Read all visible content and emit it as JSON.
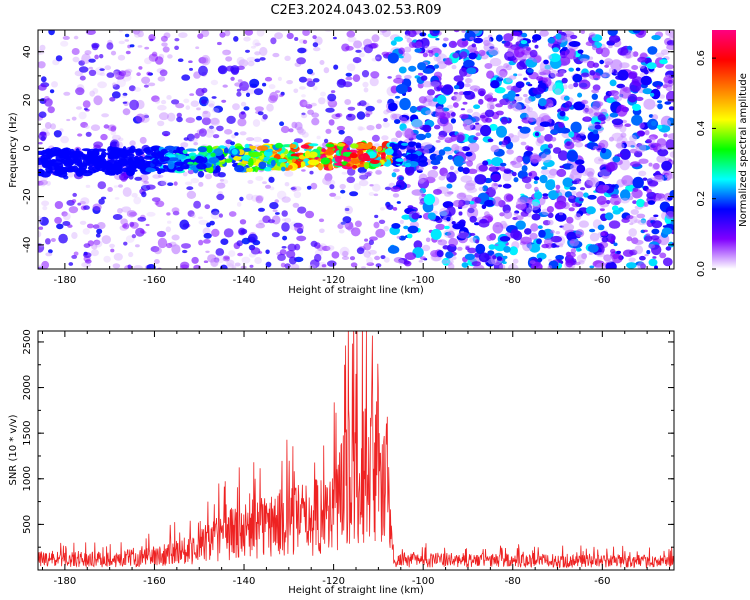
{
  "title": "C2E3.2024.043.02.53.R09",
  "chart_data": [
    {
      "type": "heatmap",
      "xlabel": "Height of straight line (km)",
      "ylabel": "Frequency (Hz)",
      "xlim": [
        -186,
        -44
      ],
      "ylim": [
        -50,
        49
      ],
      "xticks": [
        -180,
        -160,
        -140,
        -120,
        -100,
        -80,
        -60
      ],
      "yticks": [
        -40,
        -20,
        0,
        20,
        40
      ],
      "colorbar": {
        "label": "Normalized spectral amplitude",
        "range": [
          0,
          0.68
        ],
        "ticks": [
          0.0,
          0.2,
          0.4,
          0.6
        ],
        "colors": [
          "#ffffff",
          "#8000ff",
          "#0000ff",
          "#00ffff",
          "#00ff00",
          "#ffff00",
          "#ff8000",
          "#ff0000",
          "#ff0080"
        ]
      },
      "grid": false,
      "regions": [
        {
          "x": [
            -186,
            -107
          ],
          "y": [
            -50,
            49
          ],
          "level": "sparse-low"
        },
        {
          "x": [
            -107,
            -44
          ],
          "y": [
            -50,
            49
          ],
          "level": "dense-low"
        },
        {
          "x": [
            -186,
            -100
          ],
          "y": [
            -12,
            0
          ],
          "level": "band",
          "center_y": -6,
          "peak_x": -118,
          "peak_value": 0.68
        }
      ]
    },
    {
      "type": "line",
      "xlabel": "Height of straight line (km)",
      "ylabel": "SNR (10 * v/v)",
      "xlim": [
        -186,
        -44
      ],
      "ylim": [
        0,
        2620
      ],
      "xticks": [
        -180,
        -160,
        -140,
        -120,
        -100,
        -80,
        -60
      ],
      "yticks": [
        500,
        1000,
        1500,
        2000,
        2500
      ],
      "color": "#ee2222",
      "grid": false,
      "envelope": [
        {
          "x": -186,
          "y": 200
        },
        {
          "x": -170,
          "y": 200
        },
        {
          "x": -160,
          "y": 260
        },
        {
          "x": -150,
          "y": 440
        },
        {
          "x": -145,
          "y": 640
        },
        {
          "x": -140,
          "y": 760
        },
        {
          "x": -135,
          "y": 850
        },
        {
          "x": -130,
          "y": 920
        },
        {
          "x": -125,
          "y": 1000
        },
        {
          "x": -120,
          "y": 1150
        },
        {
          "x": -117,
          "y": 1750
        },
        {
          "x": -113,
          "y": 1950
        },
        {
          "x": -110,
          "y": 1700
        },
        {
          "x": -108,
          "y": 1400
        },
        {
          "x": -106.5,
          "y": 180
        },
        {
          "x": -100,
          "y": 190
        },
        {
          "x": -44,
          "y": 160
        }
      ],
      "peaks": [
        {
          "x": -112.7,
          "y": 2620
        },
        {
          "x": -117.5,
          "y": 2250
        },
        {
          "x": -115,
          "y": 2150
        },
        {
          "x": -110,
          "y": 2000
        }
      ]
    }
  ]
}
